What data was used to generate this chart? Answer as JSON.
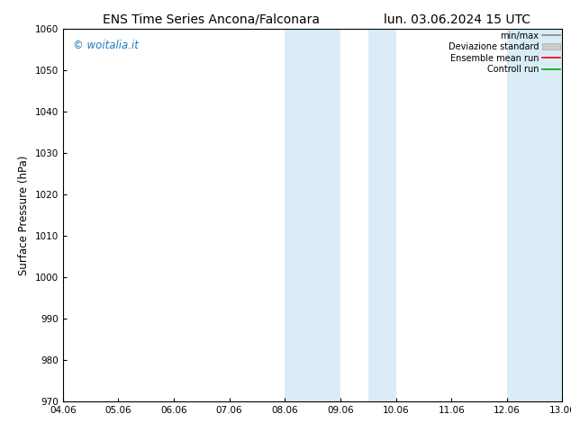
{
  "title_left": "ENS Time Series Ancona/Falconara",
  "title_right": "lun. 03.06.2024 15 UTC",
  "ylabel": "Surface Pressure (hPa)",
  "ylim": [
    970,
    1060
  ],
  "yticks": [
    970,
    980,
    990,
    1000,
    1010,
    1020,
    1030,
    1040,
    1050,
    1060
  ],
  "xlabels": [
    "04.06",
    "05.06",
    "06.06",
    "07.06",
    "08.06",
    "09.06",
    "10.06",
    "11.06",
    "12.06",
    "13.06"
  ],
  "shaded_bands": [
    {
      "xstart": 4.0,
      "xend": 5.0
    },
    {
      "xstart": 5.5,
      "xend": 6.0
    },
    {
      "xstart": 8.0,
      "xend": 9.0
    }
  ],
  "shade_color": "#daedf7",
  "watermark": "© woitalia.it",
  "watermark_color": "#1a7abf",
  "legend_items": [
    {
      "label": "min/max",
      "color": "#888888",
      "lw": 1.2,
      "style": "line"
    },
    {
      "label": "Deviazione standard",
      "color": "#cccccc",
      "style": "fill"
    },
    {
      "label": "Ensemble mean run",
      "color": "#ff0000",
      "lw": 1.2,
      "style": "line"
    },
    {
      "label": "Controll run",
      "color": "#00aa00",
      "lw": 1.2,
      "style": "line"
    }
  ],
  "bg_color": "#ffffff",
  "title_fontsize": 10,
  "tick_fontsize": 7.5,
  "ylabel_fontsize": 8.5
}
